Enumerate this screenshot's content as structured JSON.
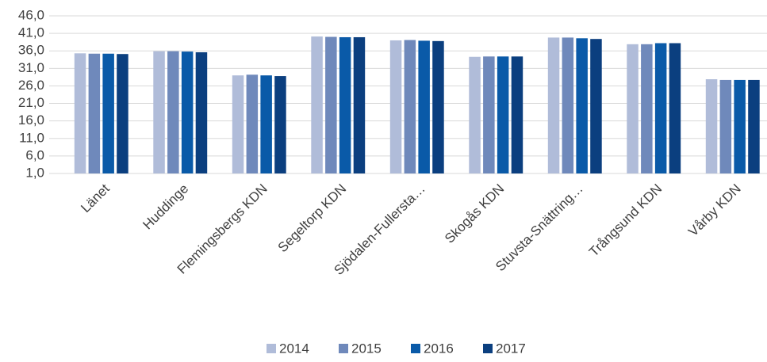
{
  "chart_data": {
    "type": "bar",
    "categories": [
      "Länet",
      "Huddinge",
      "Flemingsbergs KDN",
      "Segeltorp KDN",
      "Sjödalen-Fullersta…",
      "Skogås KDN",
      "Stuvsta-Snättring…",
      "Trångsund KDN",
      "Vårby KDN"
    ],
    "series": [
      {
        "name": "2014",
        "color": "#b0bcd9",
        "values": [
          35.3,
          35.9,
          29.0,
          40.1,
          39.0,
          34.3,
          39.8,
          37.9,
          27.9
        ]
      },
      {
        "name": "2015",
        "color": "#6f89bb",
        "values": [
          35.2,
          35.9,
          29.2,
          40.0,
          39.1,
          34.4,
          39.8,
          37.9,
          27.7
        ]
      },
      {
        "name": "2016",
        "color": "#0a5aa8",
        "values": [
          35.2,
          35.8,
          29.0,
          39.9,
          38.9,
          34.4,
          39.6,
          38.2,
          27.7
        ]
      },
      {
        "name": "2017",
        "color": "#0b3f7f",
        "values": [
          35.1,
          35.6,
          28.8,
          39.9,
          38.8,
          34.4,
          39.4,
          38.2,
          27.7
        ]
      }
    ],
    "ylim": [
      1,
      46
    ],
    "yticks": [
      {
        "value": 1,
        "label": "1,0"
      },
      {
        "value": 6,
        "label": "6,0"
      },
      {
        "value": 11,
        "label": "11,0"
      },
      {
        "value": 16,
        "label": "16,0"
      },
      {
        "value": 21,
        "label": "21,0"
      },
      {
        "value": 26,
        "label": "26,0"
      },
      {
        "value": 31,
        "label": "31,0"
      },
      {
        "value": 36,
        "label": "36,0"
      },
      {
        "value": 41,
        "label": "41,0"
      },
      {
        "value": 46,
        "label": "46,0"
      }
    ],
    "grid": true,
    "legend": "bottom"
  }
}
